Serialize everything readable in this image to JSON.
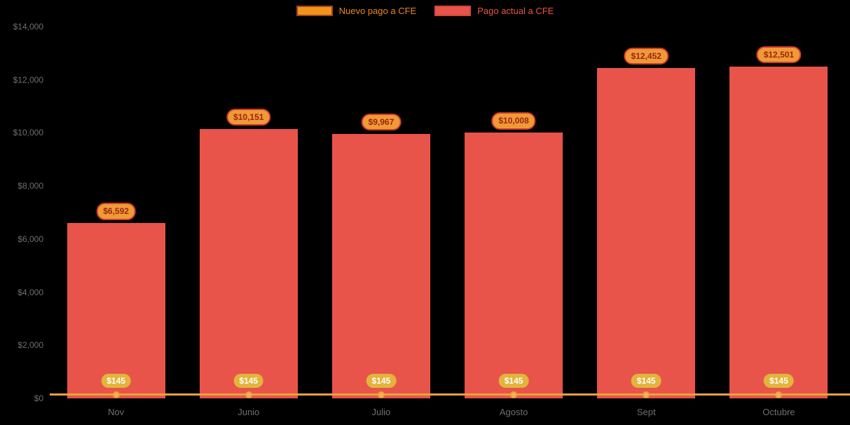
{
  "colors": {
    "background": "#000000",
    "bar": "#e8544a",
    "bar_label_bg": "#f09a36",
    "bar_label_border": "#d03a2c",
    "bar_label_text": "#9c2415",
    "line": "#e9a23c",
    "point_fill": "#f0b357",
    "line_label_bg": "#e3b43c",
    "line_label_text": "#ffffff",
    "axis_text": "#6e6e6e"
  },
  "legend": {
    "items": [
      {
        "id": "nuevo-pago",
        "label": "Nuevo pago a CFE",
        "swatch_fill": "#f0941c",
        "swatch_border": "#a4421a",
        "text_color": "#e8891b"
      },
      {
        "id": "pago-actual",
        "label": "Pago actual a CFE",
        "swatch_fill": "#e8544a",
        "swatch_border": "#d6453c",
        "text_color": "#e8544a"
      }
    ]
  },
  "chart_data": {
    "type": "bar",
    "title": "",
    "xlabel": "",
    "ylabel": "",
    "categories": [
      "Nov",
      "Junio",
      "Julio",
      "Agosto",
      "Sept",
      "Octubre"
    ],
    "series": [
      {
        "name": "Pago actual a CFE",
        "type": "bar",
        "values": [
          6592,
          10151,
          9967,
          10008,
          12452,
          12501
        ],
        "labels": [
          "$6,592",
          "$10,151",
          "$9,967",
          "$10,008",
          "$12,452",
          "$12,501"
        ]
      },
      {
        "name": "Nuevo pago a CFE",
        "type": "line",
        "values": [
          145,
          145,
          145,
          145,
          145,
          145
        ],
        "labels": [
          "$145",
          "$145",
          "$145",
          "$145",
          "$145",
          "$145"
        ]
      }
    ],
    "ylim": [
      0,
      14000
    ],
    "y_tick_values": [
      0,
      2000,
      4000,
      6000,
      8000,
      10000,
      12000,
      14000
    ],
    "y_ticks": [
      "$0",
      "$2,000",
      "$4,000",
      "$6,000",
      "$8,000",
      "$10,000",
      "$12,000",
      "$14,000"
    ],
    "grid": false,
    "legend_position": "top"
  }
}
